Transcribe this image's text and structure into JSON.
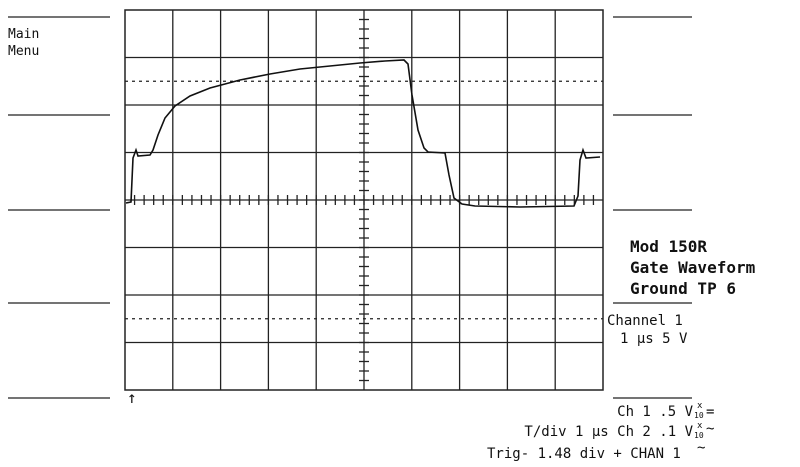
{
  "softkey_menu": {
    "lines": [
      "Main",
      "Menu"
    ]
  },
  "annotation": {
    "lines": [
      "Mod 150R",
      "Gate Waveform",
      "Ground TP 6"
    ]
  },
  "channel_info": {
    "lines": [
      "Channel 1",
      "1 µs 5 V"
    ]
  },
  "status": {
    "ch1": {
      "text": "Ch 1  .5  V",
      "probe_top": "x",
      "probe_bottom": "10",
      "coupling": "="
    },
    "ch2": {
      "text": "T/div  1 µs  Ch 2  .1  V",
      "probe_top": "x",
      "probe_bottom": "10",
      "coupling": "~"
    },
    "trigger": {
      "text": "Trig- 1.48 div + CHAN 1",
      "coupling": "~"
    }
  }
}
